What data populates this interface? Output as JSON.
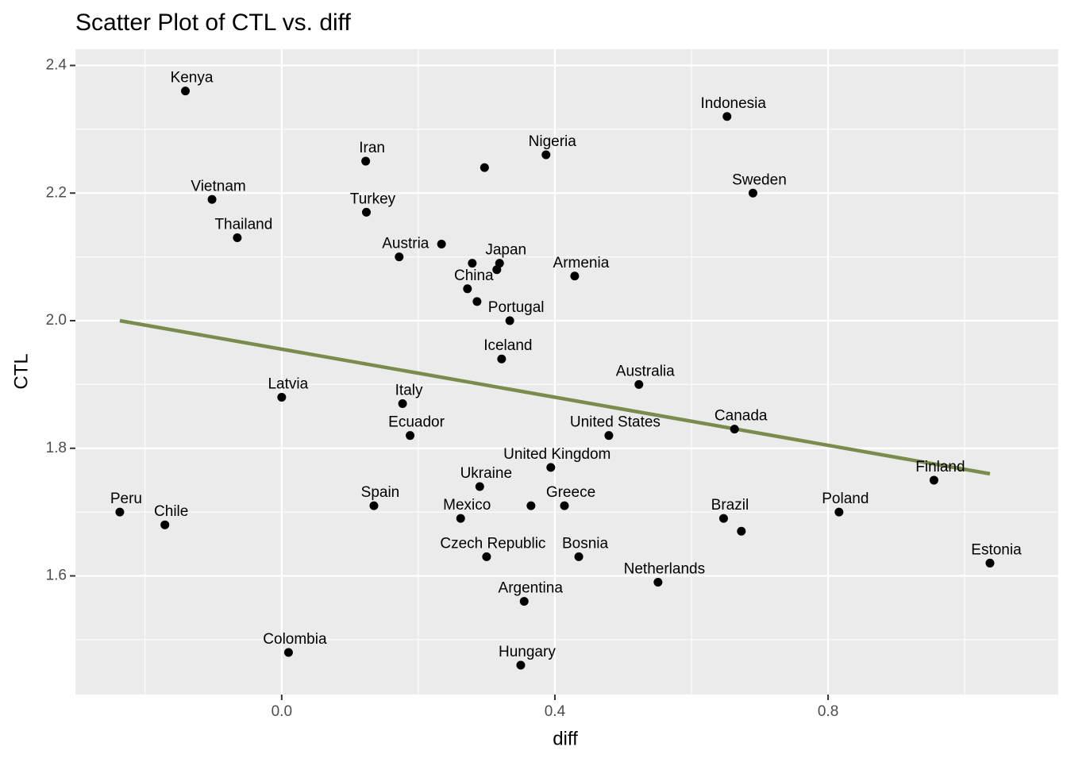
{
  "chart_data": {
    "type": "scatter",
    "title": "Scatter Plot of CTL vs. diff",
    "x_label": "diff",
    "y_label": "CTL",
    "x": [
      -0.141,
      0.652,
      0.123,
      0.297,
      0.387,
      -0.102,
      0.69,
      0.124,
      -0.065,
      0.172,
      0.234,
      0.279,
      0.319,
      0.315,
      0.429,
      0.272,
      0.286,
      0.334,
      0.322,
      0.523,
      0.0,
      0.177,
      0.188,
      0.479,
      0.663,
      0.394,
      0.955,
      0.29,
      -0.237,
      -0.171,
      0.135,
      0.262,
      0.365,
      0.414,
      0.647,
      0.673,
      0.816,
      1.037,
      0.3,
      0.435,
      0.551,
      0.355,
      0.01,
      0.35
    ],
    "values": [
      2.36,
      2.32,
      2.25,
      2.24,
      2.26,
      2.19,
      2.2,
      2.17,
      2.13,
      2.1,
      2.12,
      2.09,
      2.09,
      2.08,
      2.07,
      2.05,
      2.03,
      2.0,
      1.94,
      1.9,
      1.88,
      1.87,
      1.82,
      1.82,
      1.83,
      1.77,
      1.75,
      1.74,
      1.7,
      1.68,
      1.71,
      1.69,
      1.71,
      1.71,
      1.69,
      1.67,
      1.7,
      1.62,
      1.63,
      1.63,
      1.59,
      1.56,
      1.48,
      1.46
    ],
    "labels": [
      "Kenya",
      "Indonesia",
      "Iran",
      null,
      "Nigeria",
      "Vietnam",
      "Sweden",
      "Turkey",
      "Thailand",
      "Austria",
      null,
      null,
      "Japan",
      null,
      "Armenia",
      "China",
      null,
      "Portugal",
      "Iceland",
      "Australia",
      "Latvia",
      "Italy",
      "Ecuador",
      "United States",
      "Canada",
      "United Kingdom",
      "Finland",
      "Ukraine",
      "Peru",
      "Chile",
      "Spain",
      "Mexico",
      null,
      "Greece",
      "Brazil",
      null,
      "Poland",
      "Estonia",
      "Czech Republic",
      "Bosnia",
      "Netherlands",
      "Argentina",
      "Colombia",
      "Hungary"
    ],
    "color": "#000000",
    "fit": {
      "x": [
        -0.237,
        1.037
      ],
      "values": [
        2.0,
        1.76
      ],
      "color": "#7a8c4c"
    },
    "xlim": [
      -0.302,
      1.137
    ],
    "ylim": [
      1.414,
      2.4255
    ],
    "xticks": [
      {
        "value": 0,
        "label": "0.0"
      },
      0.4,
      0.8
    ],
    "yticks": [
      1.6,
      1.8,
      {
        "value": 2,
        "label": "2.0"
      },
      2.2,
      2.4
    ],
    "xminorticks": [
      -0.2,
      0.2,
      0.6,
      1.0
    ],
    "yminorticks": [
      1.5,
      1.7,
      1.9,
      2.1,
      2.3
    ],
    "grid": true
  }
}
